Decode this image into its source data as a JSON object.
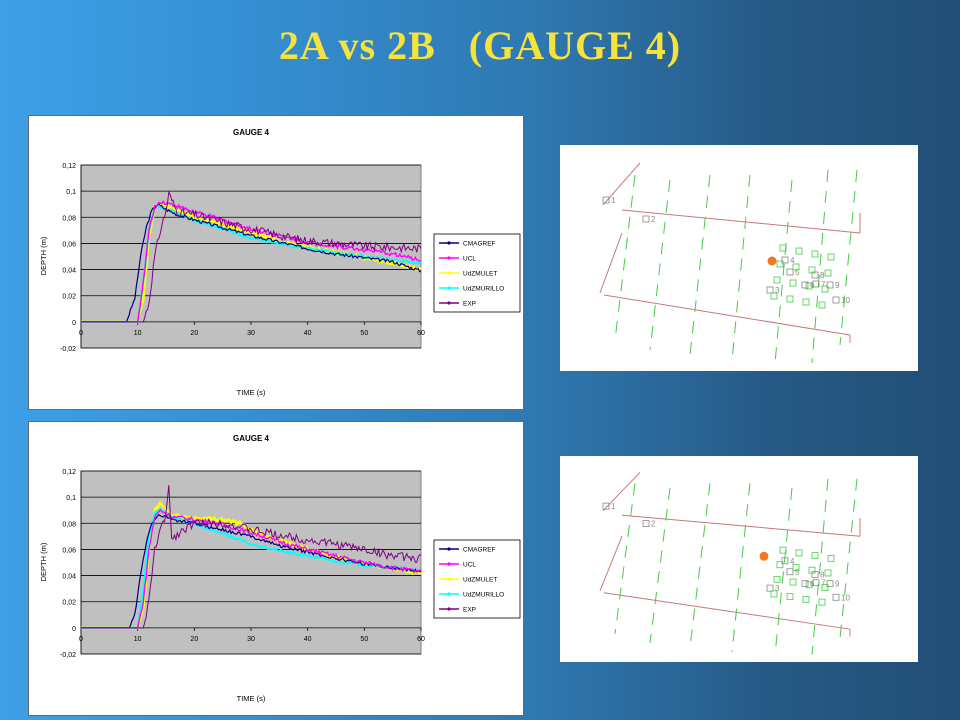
{
  "slide": {
    "title": "2A vs 2B   (GAUGE 4)"
  },
  "chart_data": [
    {
      "type": "line",
      "title": "GAUGE 4",
      "xlabel": "TIME (s)",
      "ylabel": "DEPTH (m)",
      "xlim": [
        0,
        60
      ],
      "ylim": [
        -0.02,
        0.12
      ],
      "xticks": [
        "0",
        "10",
        "20",
        "30",
        "40",
        "50",
        "60"
      ],
      "yticks": [
        "-0,02",
        "0",
        "0,02",
        "0,04",
        "0,06",
        "0,08",
        "0,1",
        "0,12"
      ],
      "grid": true,
      "legend_position": "right",
      "colors": {
        "plot_bg": "#c0c0c0"
      },
      "series": [
        {
          "name": "CMAGREF",
          "color": "#000080",
          "x": [
            0,
            8,
            9.5,
            10.5,
            11.5,
            12.5,
            13.5,
            15,
            17,
            20,
            25,
            30,
            35,
            40,
            45,
            50,
            55,
            60
          ],
          "y": [
            0,
            0,
            0.018,
            0.05,
            0.072,
            0.085,
            0.09,
            0.086,
            0.082,
            0.078,
            0.072,
            0.066,
            0.061,
            0.056,
            0.052,
            0.049,
            0.046,
            0.039
          ]
        },
        {
          "name": "UCL",
          "color": "#ff00ff",
          "x": [
            0,
            10,
            11,
            12,
            13,
            14,
            16,
            20,
            25,
            30,
            35,
            40,
            45,
            50,
            55,
            60
          ],
          "y": [
            0,
            0,
            0.03,
            0.07,
            0.088,
            0.092,
            0.09,
            0.084,
            0.078,
            0.071,
            0.066,
            0.061,
            0.058,
            0.055,
            0.052,
            0.047
          ]
        },
        {
          "name": "UdZMULET",
          "color": "#ffff00",
          "x": [
            0,
            10,
            11,
            12,
            13,
            14,
            16,
            20,
            25,
            30,
            35,
            40,
            45,
            50,
            55,
            60
          ],
          "y": [
            0,
            0,
            0.018,
            0.065,
            0.088,
            0.09,
            0.087,
            0.08,
            0.074,
            0.068,
            0.062,
            0.057,
            0.053,
            0.049,
            0.045,
            0.04
          ]
        },
        {
          "name": "UdZMURILLO",
          "color": "#00ffff",
          "x": [
            0,
            10,
            11,
            12,
            13,
            14,
            16,
            20,
            25,
            30,
            35,
            40,
            45,
            50,
            55,
            60
          ],
          "y": [
            0,
            0,
            0.03,
            0.07,
            0.088,
            0.088,
            0.085,
            0.078,
            0.071,
            0.064,
            0.06,
            0.056,
            0.053,
            0.05,
            0.047,
            0.045
          ]
        },
        {
          "name": "EXP",
          "color": "#800080",
          "x": [
            0,
            11,
            12,
            13,
            14,
            15,
            15.5,
            17,
            20,
            25,
            30,
            35,
            40,
            45,
            50,
            55,
            60
          ],
          "y": [
            0,
            0,
            0.015,
            0.05,
            0.07,
            0.085,
            0.098,
            0.084,
            0.082,
            0.076,
            0.071,
            0.066,
            0.062,
            0.06,
            0.058,
            0.057,
            0.056
          ]
        }
      ]
    },
    {
      "type": "line",
      "title": "GAUGE 4",
      "xlabel": "TIME (s)",
      "ylabel": "DEPTH (m)",
      "xlim": [
        0,
        60
      ],
      "ylim": [
        -0.02,
        0.12
      ],
      "xticks": [
        "0",
        "10",
        "20",
        "30",
        "40",
        "50",
        "60"
      ],
      "yticks": [
        "-0,02",
        "0",
        "0,02",
        "0,04",
        "0,06",
        "0,08",
        "0,1",
        "0,12"
      ],
      "grid": true,
      "legend_position": "right",
      "colors": {
        "plot_bg": "#c0c0c0"
      },
      "series": [
        {
          "name": "CMAGREF",
          "color": "#000080",
          "x": [
            0,
            8.5,
            9.5,
            10.5,
            11.5,
            12.5,
            13.5,
            15,
            17,
            20,
            25,
            30,
            35,
            40,
            45,
            50,
            55,
            60
          ],
          "y": [
            0,
            0,
            0.01,
            0.04,
            0.065,
            0.08,
            0.086,
            0.085,
            0.082,
            0.08,
            0.075,
            0.07,
            0.063,
            0.058,
            0.053,
            0.049,
            0.046,
            0.043
          ]
        },
        {
          "name": "UCL",
          "color": "#ff00ff",
          "x": [
            0,
            10,
            11,
            12,
            13,
            14,
            16,
            20,
            25,
            30,
            35,
            40,
            45,
            50,
            55,
            60
          ],
          "y": [
            0,
            0,
            0.02,
            0.06,
            0.085,
            0.09,
            0.085,
            0.083,
            0.079,
            0.073,
            0.066,
            0.06,
            0.055,
            0.05,
            0.046,
            0.043
          ]
        },
        {
          "name": "UdZMULET",
          "color": "#ffff00",
          "x": [
            0,
            10,
            11,
            12,
            13,
            14,
            16,
            20,
            25,
            28,
            30,
            35,
            40,
            45,
            50,
            55,
            60
          ],
          "y": [
            0,
            0,
            0.015,
            0.06,
            0.09,
            0.095,
            0.086,
            0.084,
            0.083,
            0.08,
            0.075,
            0.067,
            0.06,
            0.054,
            0.049,
            0.045,
            0.042
          ]
        },
        {
          "name": "UdZMURILLO",
          "color": "#00ffff",
          "x": [
            0,
            10,
            11,
            12,
            13,
            14,
            16,
            20,
            25,
            30,
            35,
            40,
            45,
            50,
            55,
            60
          ],
          "y": [
            0,
            0,
            0.03,
            0.07,
            0.088,
            0.09,
            0.085,
            0.08,
            0.072,
            0.064,
            0.059,
            0.055,
            0.051,
            0.048,
            0.046,
            0.044
          ]
        },
        {
          "name": "EXP",
          "color": "#800080",
          "x": [
            0,
            11,
            12,
            13,
            14,
            15,
            15.5,
            16,
            18,
            20,
            25,
            30,
            35,
            40,
            45,
            50,
            55,
            60
          ],
          "y": [
            0,
            0,
            0.02,
            0.06,
            0.075,
            0.085,
            0.11,
            0.068,
            0.075,
            0.08,
            0.08,
            0.075,
            0.071,
            0.067,
            0.064,
            0.06,
            0.055,
            0.053
          ]
        }
      ]
    }
  ],
  "maps": [
    {
      "gauge_labels": [
        "1",
        "2",
        "3",
        "4",
        "5",
        "6",
        "7",
        "8",
        "9",
        "10"
      ],
      "marker_color": "#f07820",
      "line_color": "#c87878",
      "dash_color": "#44cc44"
    },
    {
      "gauge_labels": [
        "1",
        "2",
        "3",
        "4",
        "5",
        "6",
        "7",
        "8",
        "9",
        "10"
      ],
      "marker_color": "#f07820",
      "line_color": "#c87878",
      "dash_color": "#44cc44"
    }
  ]
}
